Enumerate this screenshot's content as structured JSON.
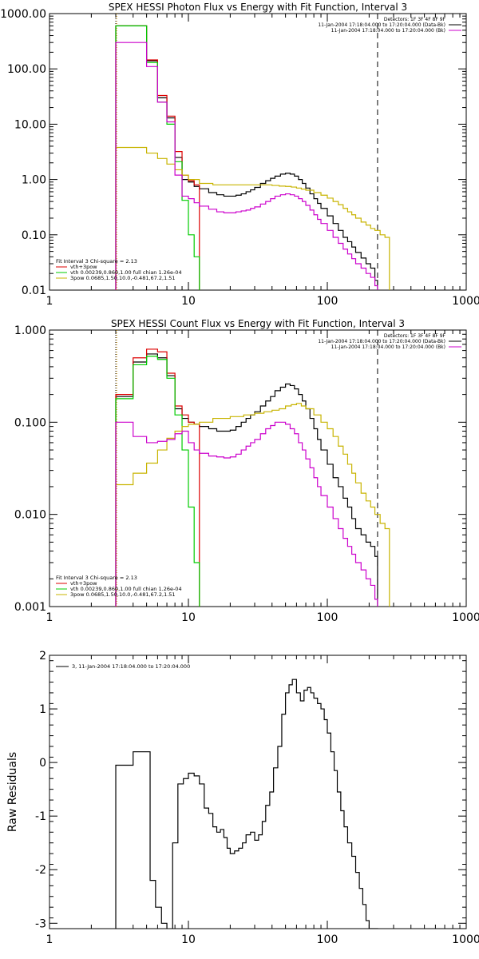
{
  "chart_data": [
    {
      "id": "photon",
      "type": "line",
      "step": true,
      "title": "SPEX HESSI Photon Flux vs Energy with Fit Function, Interval 3",
      "xlabel": "",
      "ylabel": "",
      "xscale": "log",
      "yscale": "log",
      "xlim": [
        1,
        1000
      ],
      "ylim": [
        0.01,
        1000
      ],
      "xticks": [
        1,
        10,
        100,
        1000
      ],
      "xticklabels": [
        "1",
        "10",
        "100",
        "1000"
      ],
      "yticks": [
        0.01,
        0.1,
        1,
        10,
        100,
        1000
      ],
      "yticklabels": [
        "0.01",
        "0.10",
        "1.00",
        "10.00",
        "100.00",
        "1000.00"
      ],
      "vlines": [
        {
          "x": 3,
          "style": "dotted",
          "color": "#000000"
        },
        {
          "x": 3.05,
          "style": "dotted",
          "color": "#e0a000"
        },
        {
          "x": 230,
          "style": "dashed",
          "color": "#000000"
        }
      ],
      "legend_top_right": {
        "placement": "top-right",
        "lines": [
          "Detectors: 1F 3F 4F 8F 9F",
          "11-Jan-2004 17:18:04.000 to 17:20:04.000 (Data-Bk)",
          "11-Jan-2004 17:18:04.000 to 17:20:04.000 (Bk)"
        ],
        "colors": [
          "#000000",
          "#000000",
          "#cc00cc"
        ]
      },
      "legend_bottom_left": {
        "placement": "bottom-left",
        "header": "Fit Interval 3   Chi-square = 2.13",
        "items": [
          {
            "label": "vth+3pow",
            "color": "#dd0000"
          },
          {
            "label": "vth 0.00239,0.860,1.00  full chian 1.26e-04",
            "color": "#00cc00"
          },
          {
            "label": "3pow 0.0685,1.50,10.0,-0.481,67.2,1.51",
            "color": "#c8b400"
          }
        ]
      },
      "series": [
        {
          "name": "",
          "color": "#000000",
          "x": [
            3,
            4,
            5,
            6,
            7,
            8,
            9,
            10,
            11,
            12,
            14,
            16,
            18,
            20,
            22,
            24,
            26,
            28,
            30,
            33,
            36,
            39,
            42,
            46,
            50,
            54,
            58,
            62,
            66,
            70,
            75,
            80,
            85,
            90,
            100,
            110,
            120,
            130,
            140,
            150,
            160,
            175,
            190,
            205,
            220,
            230
          ],
          "y": [
            600,
            600,
            140,
            30,
            13,
            2.5,
            1.0,
            0.9,
            0.75,
            0.68,
            0.58,
            0.53,
            0.5,
            0.5,
            0.52,
            0.55,
            0.6,
            0.65,
            0.72,
            0.85,
            0.95,
            1.05,
            1.15,
            1.25,
            1.3,
            1.25,
            1.15,
            1.0,
            0.85,
            0.7,
            0.55,
            0.45,
            0.37,
            0.3,
            0.22,
            0.16,
            0.12,
            0.09,
            0.075,
            0.06,
            0.048,
            0.038,
            0.03,
            0.025,
            0.015,
            0.01
          ]
        },
        {
          "name": "",
          "color": "#dd0000",
          "x": [
            3,
            4,
            5,
            6,
            7,
            8,
            9,
            10,
            11,
            12
          ],
          "y": [
            600,
            600,
            145,
            33,
            14,
            3.2,
            1.2,
            0.95,
            0.8,
            0.75
          ]
        },
        {
          "name": "",
          "color": "#00cc00",
          "x": [
            3,
            4,
            5,
            6,
            7,
            8,
            9,
            10,
            11,
            12
          ],
          "y": [
            600,
            600,
            130,
            25,
            10,
            2.1,
            0.42,
            0.1,
            0.04,
            0.01
          ]
        },
        {
          "name": "",
          "color": "#c8b400",
          "x": [
            3,
            4,
            5,
            6,
            7,
            8,
            9,
            10,
            12,
            15,
            20,
            25,
            30,
            35,
            40,
            45,
            50,
            55,
            60,
            65,
            70,
            80,
            90,
            100,
            110,
            120,
            130,
            140,
            150,
            160,
            175,
            190,
            205,
            220,
            240,
            260,
            280
          ],
          "y": [
            3.8,
            3.8,
            3.0,
            2.4,
            1.9,
            1.5,
            1.2,
            1.0,
            0.85,
            0.8,
            0.8,
            0.8,
            0.8,
            0.8,
            0.78,
            0.76,
            0.75,
            0.73,
            0.7,
            0.67,
            0.64,
            0.58,
            0.52,
            0.46,
            0.4,
            0.35,
            0.3,
            0.26,
            0.23,
            0.2,
            0.17,
            0.15,
            0.13,
            0.12,
            0.1,
            0.09,
            0.01
          ]
        },
        {
          "name": "",
          "color": "#cc00cc",
          "x": [
            3,
            4,
            5,
            6,
            7,
            8,
            9,
            10,
            11,
            12,
            14,
            16,
            18,
            20,
            22,
            24,
            26,
            28,
            30,
            33,
            36,
            39,
            42,
            46,
            50,
            54,
            58,
            62,
            66,
            70,
            75,
            80,
            85,
            90,
            100,
            110,
            120,
            130,
            140,
            150,
            160,
            175,
            190,
            205,
            220,
            230
          ],
          "y": [
            300,
            300,
            110,
            25,
            11,
            1.2,
            0.5,
            0.45,
            0.38,
            0.33,
            0.29,
            0.26,
            0.25,
            0.25,
            0.26,
            0.27,
            0.28,
            0.3,
            0.32,
            0.36,
            0.4,
            0.45,
            0.5,
            0.53,
            0.55,
            0.53,
            0.5,
            0.45,
            0.4,
            0.34,
            0.28,
            0.23,
            0.19,
            0.16,
            0.12,
            0.09,
            0.07,
            0.055,
            0.045,
            0.037,
            0.03,
            0.025,
            0.02,
            0.017,
            0.012,
            0.01
          ]
        }
      ]
    },
    {
      "id": "count",
      "type": "line",
      "step": true,
      "title": "SPEX HESSI Count Flux vs Energy with Fit Function, Interval 3",
      "xlabel": "",
      "ylabel": "",
      "xscale": "log",
      "yscale": "log",
      "xlim": [
        1,
        1000
      ],
      "ylim": [
        0.001,
        1
      ],
      "xticks": [
        1,
        10,
        100,
        1000
      ],
      "xticklabels": [
        "1",
        "10",
        "100",
        "1000"
      ],
      "yticks": [
        0.001,
        0.01,
        0.1,
        1
      ],
      "yticklabels": [
        "0.001",
        "0.010",
        "0.100",
        "1.000"
      ],
      "vlines": [
        {
          "x": 3,
          "style": "dotted",
          "color": "#000000"
        },
        {
          "x": 3.05,
          "style": "dotted",
          "color": "#e0a000"
        },
        {
          "x": 230,
          "style": "dashed",
          "color": "#000000"
        }
      ],
      "legend_top_right": {
        "placement": "top-right",
        "lines": [
          "Detectors: 1F 3F 4F 8F 9F",
          "11-Jan-2004 17:18:04.000 to 17:20:04.000 (Data-Bk)",
          "11-Jan-2004 17:18:04.000 to 17:20:04.000 (Bk)"
        ],
        "colors": [
          "#000000",
          "#000000",
          "#cc00cc"
        ]
      },
      "legend_bottom_left": {
        "placement": "bottom-left",
        "header": "Fit Interval 3   Chi-square = 2.13",
        "items": [
          {
            "label": "vth+3pow",
            "color": "#dd0000"
          },
          {
            "label": "vth 0.00239,0.860,1.00  full chian 1.26e-04",
            "color": "#00cc00"
          },
          {
            "label": "3pow 0.0685,1.50,10.0,-0.481,67.2,1.51",
            "color": "#c8b400"
          }
        ]
      },
      "series": [
        {
          "name": "",
          "color": "#000000",
          "x": [
            3,
            4,
            5,
            6,
            7,
            8,
            9,
            10,
            11,
            12,
            14,
            16,
            18,
            20,
            22,
            24,
            26,
            28,
            30,
            33,
            36,
            39,
            42,
            46,
            50,
            54,
            58,
            62,
            66,
            70,
            75,
            80,
            85,
            90,
            100,
            110,
            120,
            130,
            140,
            150,
            160,
            175,
            190,
            205,
            220,
            230
          ],
          "y": [
            0.19,
            0.45,
            0.55,
            0.5,
            0.32,
            0.14,
            0.11,
            0.1,
            0.095,
            0.09,
            0.085,
            0.08,
            0.08,
            0.082,
            0.09,
            0.1,
            0.11,
            0.12,
            0.13,
            0.15,
            0.17,
            0.19,
            0.22,
            0.24,
            0.26,
            0.25,
            0.23,
            0.2,
            0.17,
            0.14,
            0.11,
            0.085,
            0.065,
            0.05,
            0.035,
            0.025,
            0.02,
            0.015,
            0.012,
            0.009,
            0.007,
            0.006,
            0.005,
            0.0045,
            0.0035,
            0.001
          ]
        },
        {
          "name": "",
          "color": "#dd0000",
          "x": [
            3,
            4,
            5,
            6,
            7,
            8,
            9,
            10,
            11,
            12
          ],
          "y": [
            0.2,
            0.5,
            0.62,
            0.58,
            0.34,
            0.15,
            0.12,
            0.1,
            0.095,
            0.09
          ]
        },
        {
          "name": "",
          "color": "#00cc00",
          "x": [
            3,
            4,
            5,
            6,
            7,
            8,
            9,
            10,
            11,
            12
          ],
          "y": [
            0.18,
            0.42,
            0.52,
            0.48,
            0.3,
            0.12,
            0.05,
            0.012,
            0.003,
            0.001
          ]
        },
        {
          "name": "",
          "color": "#c8b400",
          "x": [
            3,
            4,
            5,
            6,
            7,
            8,
            9,
            10,
            12,
            15,
            20,
            25,
            30,
            35,
            40,
            45,
            50,
            55,
            60,
            65,
            70,
            80,
            90,
            100,
            110,
            120,
            130,
            140,
            150,
            160,
            175,
            190,
            205,
            220,
            240,
            260,
            280
          ],
          "y": [
            0.021,
            0.028,
            0.036,
            0.05,
            0.067,
            0.08,
            0.09,
            0.095,
            0.1,
            0.11,
            0.115,
            0.12,
            0.125,
            0.13,
            0.135,
            0.14,
            0.15,
            0.155,
            0.16,
            0.15,
            0.14,
            0.12,
            0.1,
            0.085,
            0.07,
            0.055,
            0.045,
            0.035,
            0.028,
            0.022,
            0.017,
            0.014,
            0.012,
            0.01,
            0.008,
            0.007,
            0.001
          ]
        },
        {
          "name": "",
          "color": "#cc00cc",
          "x": [
            3,
            4,
            5,
            6,
            7,
            8,
            9,
            10,
            11,
            12,
            14,
            16,
            18,
            20,
            22,
            24,
            26,
            28,
            30,
            33,
            36,
            39,
            42,
            46,
            50,
            54,
            58,
            62,
            66,
            70,
            75,
            80,
            85,
            90,
            100,
            110,
            120,
            130,
            140,
            150,
            160,
            175,
            190,
            205,
            220,
            230
          ],
          "y": [
            0.1,
            0.07,
            0.06,
            0.062,
            0.065,
            0.075,
            0.08,
            0.06,
            0.05,
            0.046,
            0.043,
            0.042,
            0.041,
            0.042,
            0.045,
            0.05,
            0.055,
            0.06,
            0.065,
            0.075,
            0.085,
            0.092,
            0.1,
            0.1,
            0.095,
            0.085,
            0.075,
            0.06,
            0.05,
            0.04,
            0.032,
            0.025,
            0.02,
            0.016,
            0.012,
            0.009,
            0.007,
            0.0055,
            0.0045,
            0.0037,
            0.003,
            0.0025,
            0.002,
            0.0017,
            0.0012,
            0.001
          ]
        }
      ]
    },
    {
      "id": "resid",
      "type": "line",
      "step": true,
      "title": "",
      "xlabel": "",
      "ylabel": "Raw Residuals",
      "xscale": "log",
      "yscale": "linear",
      "xlim": [
        1,
        1000
      ],
      "ylim": [
        -3.1,
        2
      ],
      "xticks": [
        1,
        10,
        100,
        1000
      ],
      "xticklabels": [
        "1",
        "10",
        "100",
        "1000"
      ],
      "yticks": [
        -3,
        -2,
        -1,
        0,
        1,
        2
      ],
      "yticklabels": [
        "-3",
        "-2",
        "-1",
        "0",
        "1",
        "2"
      ],
      "vlines": [],
      "legend_inline": {
        "placement": "top-left",
        "label": "3, 11-Jan-2004 17:18:04.000 to 17:20:04.000",
        "color": "#000000"
      },
      "series": [
        {
          "name": "",
          "color": "#000000",
          "x": [
            3,
            3.3,
            3.7,
            4,
            4.4,
            4.8,
            5.3,
            5.8,
            6.4,
            7,
            7.7,
            8.4,
            9.2,
            10,
            11,
            12,
            13,
            14,
            15,
            16,
            17,
            18,
            19,
            20,
            21.5,
            23,
            24.5,
            26,
            28,
            30,
            32,
            34,
            36,
            38.5,
            41,
            44,
            47,
            50,
            53,
            56,
            60,
            64,
            68,
            72,
            76,
            80,
            85,
            90,
            95,
            100,
            106,
            112,
            118,
            125,
            132,
            140,
            150,
            160,
            170,
            180,
            190,
            200,
            210,
            220,
            232
          ],
          "y": [
            -0.05,
            -0.05,
            -0.05,
            0.2,
            0.2,
            0.2,
            -2.2,
            -2.7,
            -3.0,
            -3.2,
            -1.5,
            -0.4,
            -0.3,
            -0.2,
            -0.25,
            -0.4,
            -0.85,
            -0.95,
            -1.2,
            -1.3,
            -1.25,
            -1.4,
            -1.6,
            -1.7,
            -1.65,
            -1.6,
            -1.5,
            -1.35,
            -1.3,
            -1.45,
            -1.35,
            -1.1,
            -0.8,
            -0.55,
            -0.1,
            0.3,
            0.9,
            1.3,
            1.45,
            1.55,
            1.3,
            1.15,
            1.35,
            1.4,
            1.3,
            1.2,
            1.1,
            1.0,
            0.8,
            0.55,
            0.2,
            -0.15,
            -0.55,
            -0.9,
            -1.2,
            -1.5,
            -1.75,
            -2.05,
            -2.35,
            -2.65,
            -2.95,
            -3.1,
            -3.1,
            -3.1,
            -3.1
          ]
        }
      ]
    }
  ]
}
